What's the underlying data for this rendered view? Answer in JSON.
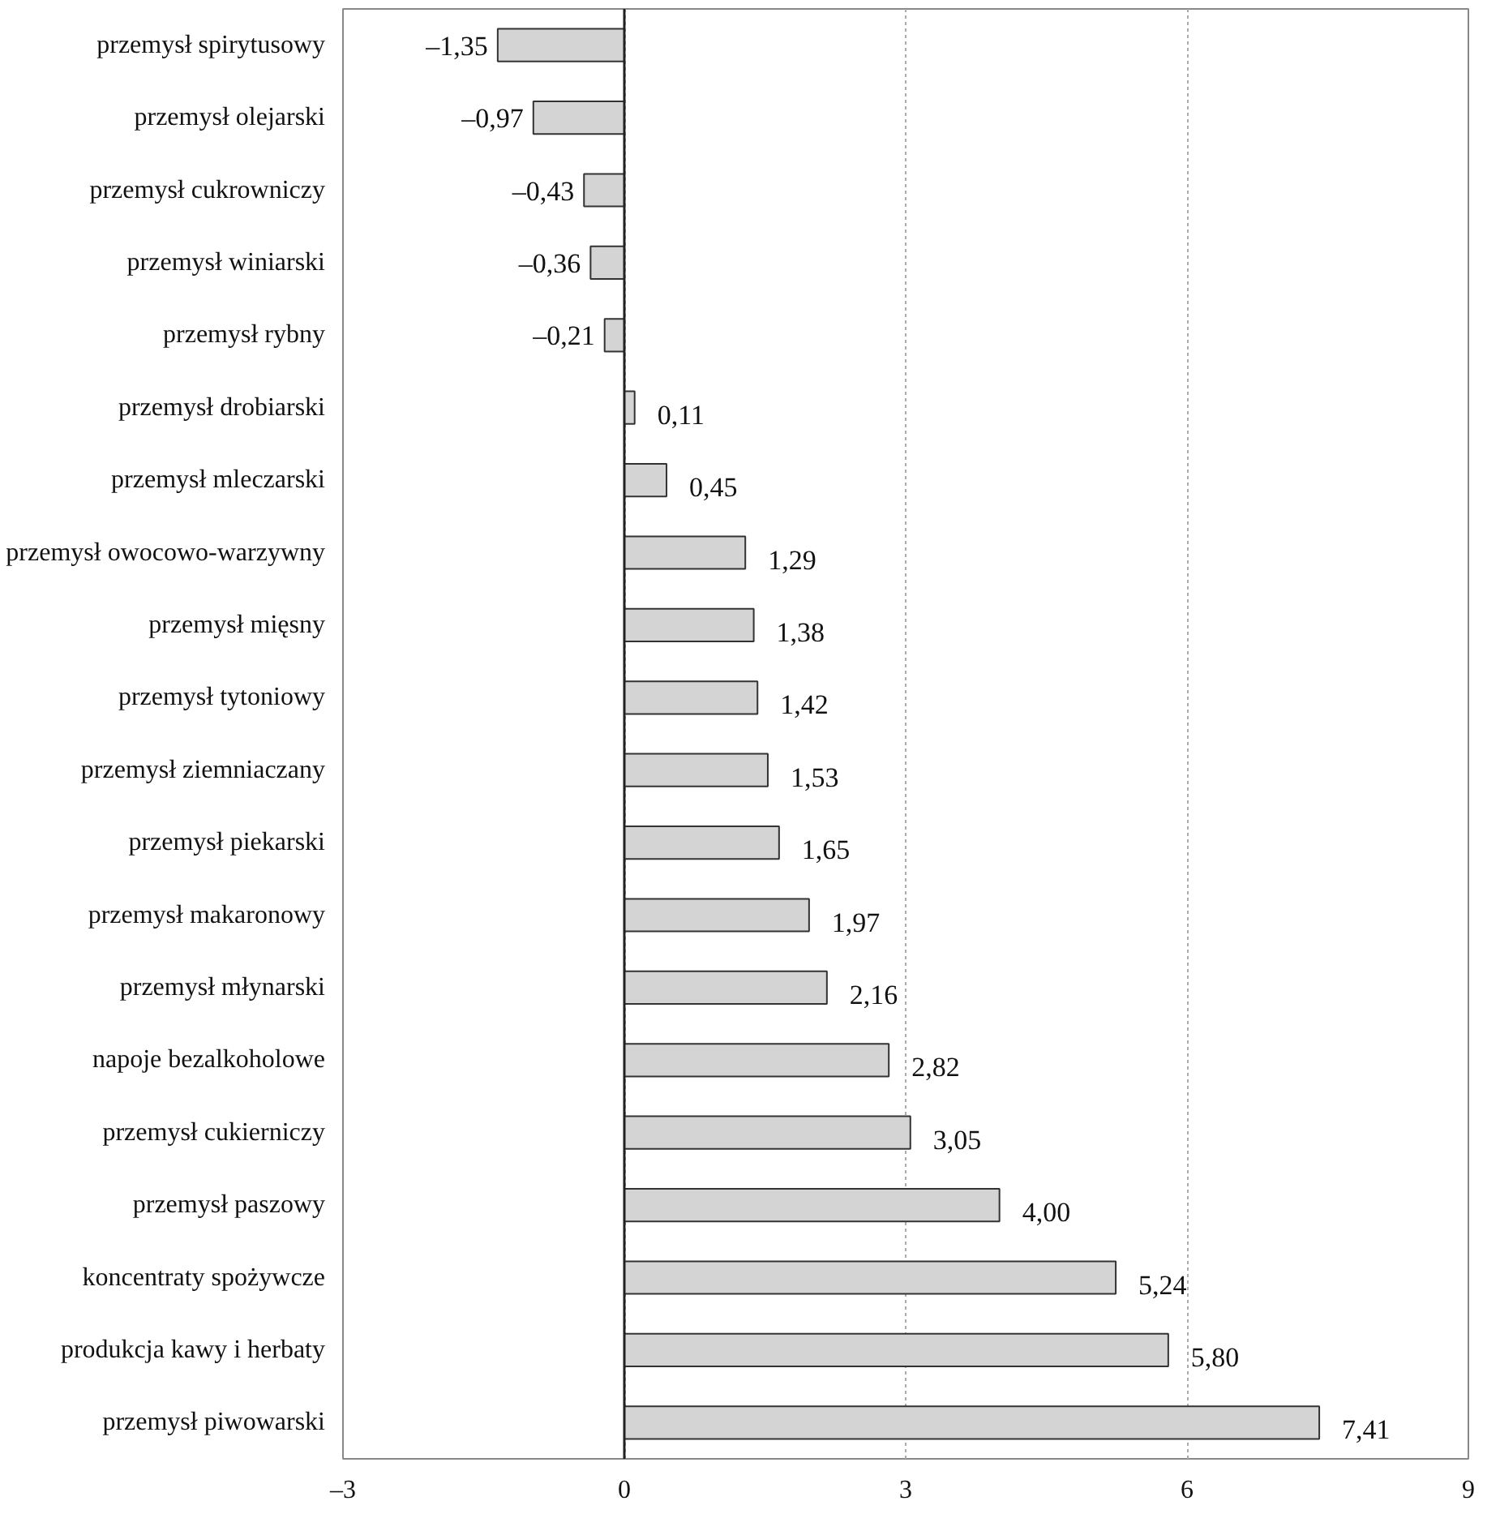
{
  "chart_data": {
    "type": "bar",
    "orientation": "horizontal",
    "categories": [
      "przemysł spirytusowy",
      "przemysł olejarski",
      "przemysł cukrowniczy",
      "przemysł winiarski",
      "przemysł rybny",
      "przemysł drobiarski",
      "przemysł mleczarski",
      "przemysł owocowo-warzywny",
      "przemysł mięsny",
      "przemysł tytoniowy",
      "przemysł ziemniaczany",
      "przemysł piekarski",
      "przemysł makaronowy",
      "przemysł młynarski",
      "napoje bezalkoholowe",
      "przemysł cukierniczy",
      "przemysł paszowy",
      "koncentraty spożywcze",
      "produkcja kawy i herbaty",
      "przemysł piwowarski"
    ],
    "values": [
      -1.35,
      -0.97,
      -0.43,
      -0.36,
      -0.21,
      0.11,
      0.45,
      1.29,
      1.38,
      1.42,
      1.53,
      1.65,
      1.97,
      2.16,
      2.82,
      3.05,
      4.0,
      5.24,
      5.8,
      7.41
    ],
    "value_labels": [
      "–1,35",
      "–0,97",
      "–0,43",
      "–0,36",
      "–0,21",
      "0,11",
      "0,45",
      "1,29",
      "1,38",
      "1,42",
      "1,53",
      "1,65",
      "1,97",
      "2,16",
      "2,82",
      "3,05",
      "4,00",
      "5,24",
      "5,80",
      "7,41"
    ],
    "color": "#d4d4d4",
    "xlim": [
      -3,
      9
    ],
    "xticks": [
      {
        "value": -3,
        "label": "–3"
      },
      0,
      3,
      6,
      9
    ],
    "grid": "x"
  }
}
